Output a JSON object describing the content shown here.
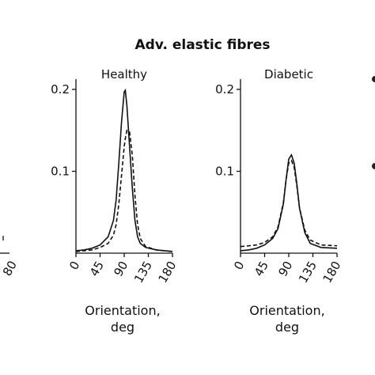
{
  "figure_title": "Adv. elastic fibres",
  "chart_data": [
    {
      "type": "line",
      "title": "Healthy",
      "xlabel": "Orientation,\ndeg",
      "ylabel": "",
      "xlim": [
        0,
        180
      ],
      "ylim": [
        0,
        0.2
      ],
      "xticks": [
        "0",
        "45",
        "90",
        "135",
        "180"
      ],
      "yticks": [
        "0.1",
        "0.2"
      ],
      "x": [
        0,
        15,
        30,
        45,
        60,
        70,
        75,
        80,
        85,
        90,
        92,
        95,
        100,
        105,
        110,
        115,
        120,
        130,
        150,
        180
      ],
      "series": [
        {
          "style": "solid",
          "values": [
            0.003,
            0.004,
            0.006,
            0.01,
            0.02,
            0.04,
            0.065,
            0.11,
            0.16,
            0.197,
            0.199,
            0.18,
            0.13,
            0.08,
            0.04,
            0.02,
            0.012,
            0.007,
            0.004,
            0.002
          ]
        },
        {
          "style": "dashed",
          "values": [
            0.002,
            0.003,
            0.004,
            0.007,
            0.012,
            0.022,
            0.035,
            0.06,
            0.095,
            0.13,
            0.14,
            0.15,
            0.148,
            0.12,
            0.07,
            0.035,
            0.018,
            0.008,
            0.004,
            0.002
          ]
        }
      ]
    },
    {
      "type": "line",
      "title": "Diabetic",
      "xlabel": "Orientation,\ndeg",
      "ylabel": "",
      "xlim": [
        0,
        180
      ],
      "ylim": [
        0,
        0.2
      ],
      "xticks": [
        "0",
        "45",
        "90",
        "135",
        "180"
      ],
      "yticks": [
        "0.1",
        "0.2"
      ],
      "x": [
        0,
        15,
        30,
        45,
        60,
        70,
        80,
        85,
        90,
        95,
        100,
        105,
        110,
        120,
        130,
        150,
        180
      ],
      "series": [
        {
          "style": "solid",
          "values": [
            0.003,
            0.004,
            0.006,
            0.01,
            0.018,
            0.03,
            0.06,
            0.09,
            0.115,
            0.12,
            0.11,
            0.085,
            0.055,
            0.025,
            0.012,
            0.007,
            0.006
          ]
        },
        {
          "style": "dashed",
          "values": [
            0.008,
            0.009,
            0.01,
            0.013,
            0.02,
            0.032,
            0.062,
            0.09,
            0.11,
            0.113,
            0.105,
            0.082,
            0.055,
            0.028,
            0.016,
            0.01,
            0.009
          ]
        }
      ]
    }
  ],
  "left_partial": {
    "tick_label": "80"
  }
}
